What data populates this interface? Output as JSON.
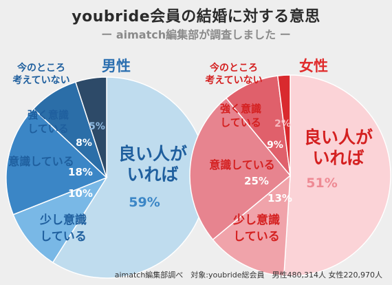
{
  "title": "youbride会員の結婚に対する意思",
  "subtitle": "ー aimatch編集部が調査しました ー",
  "source": "aimatch編集部調べ　対象:youbride総会員　男性480,314人 女性220,970人",
  "chart_data": [
    {
      "type": "pie",
      "name": "男性",
      "title": "男性",
      "slices": [
        {
          "category": "良い人がいれば",
          "value": 59,
          "label": "59%",
          "color": "#bfdcee"
        },
        {
          "category": "少し意識している",
          "value": 10,
          "label": "10%",
          "color": "#79b8e6"
        },
        {
          "category": "意識している",
          "value": 18,
          "label": "18%",
          "color": "#3b86c6"
        },
        {
          "category": "強く意識している",
          "value": 8,
          "label": "8%",
          "color": "#2b6ea8"
        },
        {
          "category": "今のところ考えていない",
          "value": 5,
          "label": "5%",
          "color": "#2d4a68"
        }
      ],
      "category_labels": {
        "良い人がいれば": [
          "良い人が",
          "いれば"
        ],
        "少し意識している": [
          "少し意識",
          "している"
        ],
        "意識している": [
          "意識している"
        ],
        "強く意識している": [
          "強く意識",
          "している"
        ],
        "今のところ考えていない": [
          "今のところ",
          "考えていない"
        ]
      },
      "title_color": "#2b6fb0"
    },
    {
      "type": "pie",
      "name": "女性",
      "title": "女性",
      "slices": [
        {
          "category": "良い人がいれば",
          "value": 51,
          "label": "51%",
          "color": "#fbd3d7"
        },
        {
          "category": "少し意識している",
          "value": 13,
          "label": "13%",
          "color": "#f0a3aa"
        },
        {
          "category": "意識している",
          "value": 25,
          "label": "25%",
          "color": "#e7848f"
        },
        {
          "category": "強く意識している",
          "value": 9,
          "label": "9%",
          "color": "#e0606b"
        },
        {
          "category": "今のところ考えていない",
          "value": 2,
          "label": "2%",
          "color": "#d92a2e"
        }
      ],
      "category_labels": {
        "良い人がいれば": [
          "良い人が",
          "いれば"
        ],
        "少し意識している": [
          "少し意識",
          "している"
        ],
        "意識している": [
          "意識している"
        ],
        "強く意識している": [
          "強く意識",
          "している"
        ],
        "今のところ考えていない": [
          "今のところ",
          "考えていない"
        ]
      },
      "title_color": "#e02b2b"
    }
  ]
}
